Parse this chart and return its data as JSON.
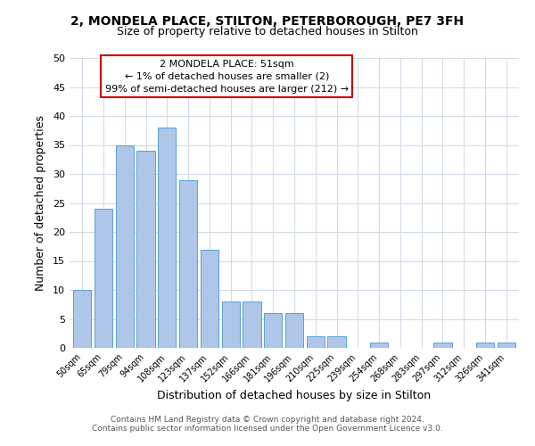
{
  "title_line1": "2, MONDELA PLACE, STILTON, PETERBOROUGH, PE7 3FH",
  "title_line2": "Size of property relative to detached houses in Stilton",
  "xlabel": "Distribution of detached houses by size in Stilton",
  "ylabel": "Number of detached properties",
  "bar_labels": [
    "50sqm",
    "65sqm",
    "79sqm",
    "94sqm",
    "108sqm",
    "123sqm",
    "137sqm",
    "152sqm",
    "166sqm",
    "181sqm",
    "196sqm",
    "210sqm",
    "225sqm",
    "239sqm",
    "254sqm",
    "268sqm",
    "283sqm",
    "297sqm",
    "312sqm",
    "326sqm",
    "341sqm"
  ],
  "bar_values": [
    10,
    24,
    35,
    34,
    38,
    29,
    17,
    8,
    8,
    6,
    6,
    2,
    2,
    0,
    1,
    0,
    0,
    1,
    0,
    1,
    1
  ],
  "bar_color": "#aec6e8",
  "bar_edge_color": "#5a9fd4",
  "annotation_title": "2 MONDELA PLACE: 51sqm",
  "annotation_line2": "← 1% of detached houses are smaller (2)",
  "annotation_line3": "99% of semi-detached houses are larger (212) →",
  "annotation_box_edge": "#cc0000",
  "ylim": [
    0,
    50
  ],
  "yticks": [
    0,
    5,
    10,
    15,
    20,
    25,
    30,
    35,
    40,
    45,
    50
  ],
  "footer_line1": "Contains HM Land Registry data © Crown copyright and database right 2024.",
  "footer_line2": "Contains public sector information licensed under the Open Government Licence v3.0.",
  "bg_color": "#ffffff",
  "grid_color": "#d0d8e8"
}
